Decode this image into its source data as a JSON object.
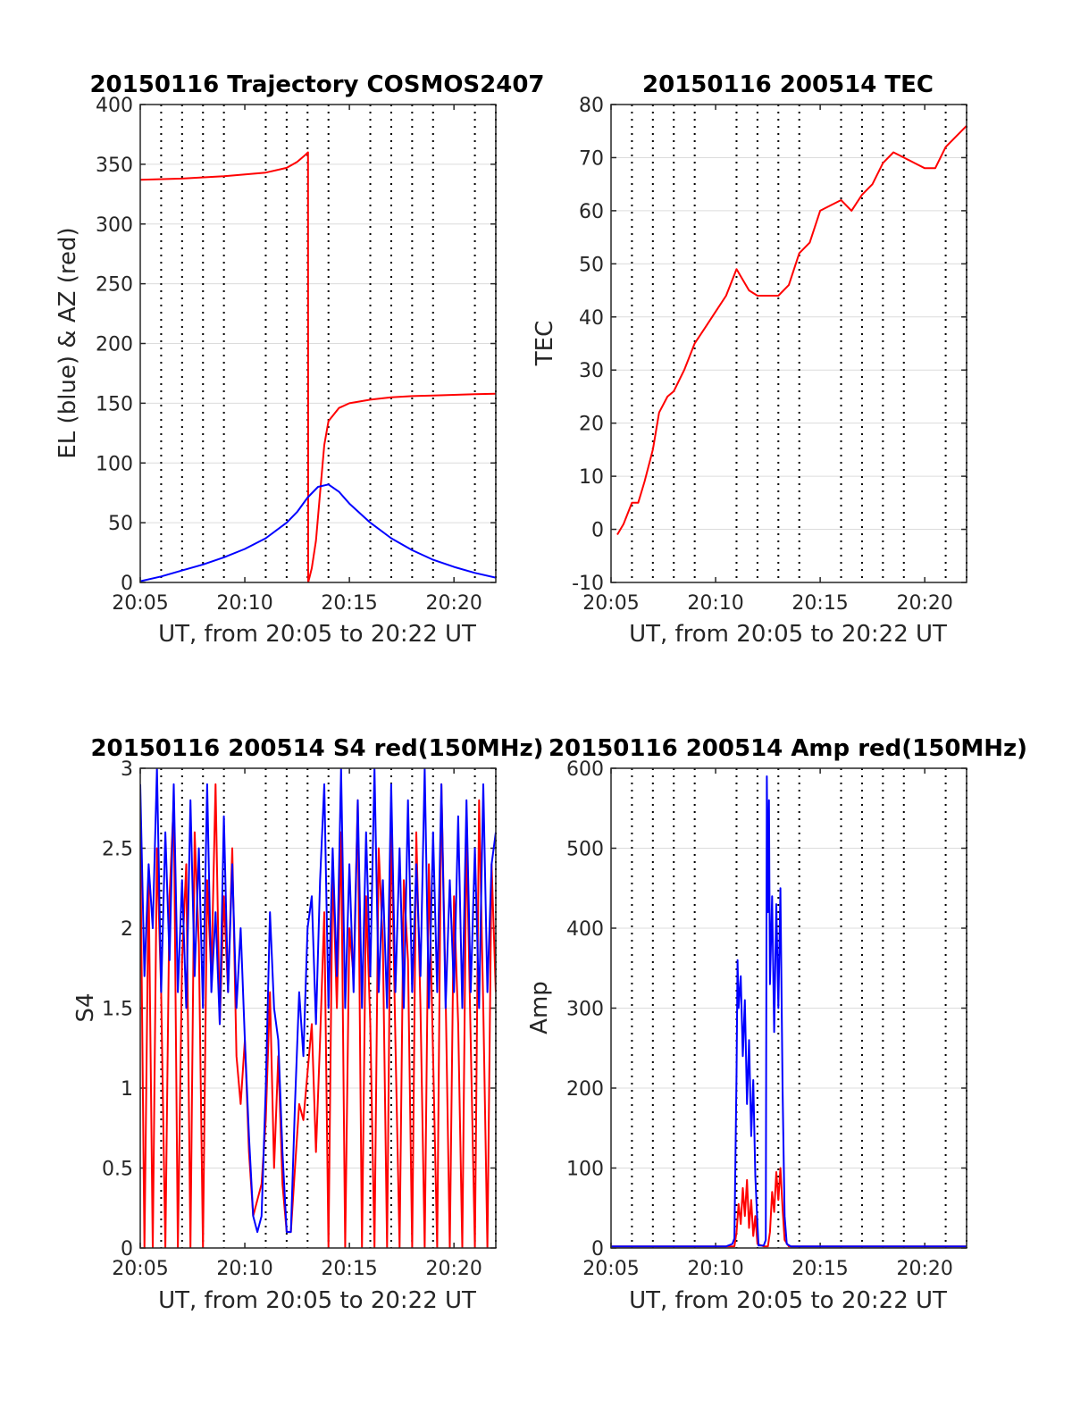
{
  "chart_data": [
    {
      "type": "line",
      "title": "20150116 Trajectory COSMOS2407",
      "xlabel": "UT, from 20:05 to 20:22 UT",
      "ylabel": "EL (blue) & AZ (red)",
      "xlim": [
        0,
        17
      ],
      "ylim": [
        0,
        400
      ],
      "x_ticks": [
        "20:05",
        "20:10",
        "20:15",
        "20:20"
      ],
      "y_ticks": [
        "0",
        "50",
        "100",
        "150",
        "200",
        "250",
        "300",
        "350",
        "400"
      ],
      "grid": true,
      "series": [
        {
          "color": "#ff0000",
          "x": [
            0,
            2,
            4,
            6,
            7,
            7.5,
            7.9,
            8.02,
            8.03,
            8.2,
            8.4,
            8.6,
            8.8,
            9.0,
            9.5,
            10,
            11,
            12,
            13,
            14,
            15,
            16,
            17
          ],
          "y": [
            337,
            338,
            340,
            343,
            347,
            352,
            358,
            360,
            0,
            12,
            35,
            75,
            115,
            135,
            146,
            150,
            153,
            155,
            156,
            156.5,
            157,
            157.5,
            158
          ]
        },
        {
          "color": "#0000ff",
          "x": [
            0,
            1,
            2,
            3,
            4,
            5,
            6,
            7,
            7.5,
            8,
            8.5,
            9,
            9.5,
            10,
            11,
            12,
            13,
            14,
            15,
            16,
            17
          ],
          "y": [
            1,
            5,
            10,
            15,
            21,
            28,
            37,
            50,
            59,
            71,
            80,
            82,
            76,
            66,
            50,
            37,
            27,
            19,
            13,
            8,
            4
          ]
        }
      ]
    },
    {
      "type": "line",
      "title": "20150116 200514 TEC",
      "xlabel": "UT, from 20:05 to 20:22 UT",
      "ylabel": "TEC",
      "xlim": [
        0,
        17
      ],
      "ylim": [
        -10,
        80
      ],
      "x_ticks": [
        "20:05",
        "20:10",
        "20:15",
        "20:20"
      ],
      "y_ticks": [
        "-10",
        "0",
        "10",
        "20",
        "30",
        "40",
        "50",
        "60",
        "70",
        "80"
      ],
      "grid": true,
      "series": [
        {
          "color": "#ff0000",
          "x": [
            0.3,
            0.6,
            1.0,
            1.3,
            1.6,
            2.0,
            2.3,
            2.7,
            3.0,
            3.5,
            4.0,
            4.5,
            5.0,
            5.5,
            6.0,
            6.3,
            6.6,
            7.0,
            7.5,
            8.0,
            8.5,
            9.0,
            9.5,
            10.0,
            10.5,
            11.0,
            11.5,
            12.0,
            12.5,
            13.0,
            13.5,
            14.0,
            14.5,
            15.0,
            15.5,
            16.0,
            16.5,
            17.0
          ],
          "y": [
            -1,
            1,
            5,
            5,
            9,
            15,
            22,
            25,
            26,
            30,
            35,
            38,
            41,
            44,
            49,
            47,
            45,
            44,
            44,
            44,
            46,
            52,
            54,
            60,
            61,
            62,
            60,
            63,
            65,
            69,
            71,
            70,
            69,
            68,
            68,
            72,
            74,
            76
          ]
        }
      ]
    },
    {
      "type": "line",
      "title": "20150116 200514 S4 red(150MHz)",
      "xlabel": "UT, from 20:05 to 20:22 UT",
      "ylabel": "S4",
      "xlim": [
        0,
        17
      ],
      "ylim": [
        0,
        3
      ],
      "x_ticks": [
        "20:05",
        "20:10",
        "20:15",
        "20:20"
      ],
      "y_ticks": [
        "0",
        "0.5",
        "1",
        "1.5",
        "2",
        "2.5",
        "3"
      ],
      "grid": true,
      "series": [
        {
          "color": "#ff0000",
          "x": [
            0,
            0.2,
            0.4,
            0.6,
            0.8,
            1.0,
            1.2,
            1.4,
            1.6,
            1.8,
            2.0,
            2.2,
            2.4,
            2.6,
            2.8,
            3.0,
            3.2,
            3.4,
            3.6,
            3.8,
            4.0,
            4.2,
            4.4,
            4.6,
            4.8,
            5.0,
            5.2,
            5.4,
            5.6,
            5.8,
            6.0,
            6.2,
            6.4,
            6.6,
            6.8,
            7.0,
            7.2,
            7.4,
            7.6,
            7.8,
            8.0,
            8.2,
            8.4,
            8.6,
            8.8,
            9.0,
            9.2,
            9.4,
            9.6,
            9.8,
            10.0,
            10.2,
            10.4,
            10.6,
            10.8,
            11.0,
            11.2,
            11.4,
            11.6,
            11.8,
            12.0,
            12.2,
            12.4,
            12.6,
            12.8,
            13.0,
            13.2,
            13.4,
            13.6,
            13.8,
            14.0,
            14.2,
            14.4,
            14.6,
            14.8,
            15.0,
            15.2,
            15.4,
            15.6,
            15.8,
            16.0,
            16.2,
            16.4,
            16.6,
            16.8,
            17.0
          ],
          "y": [
            2.6,
            0.0,
            2.3,
            0.0,
            2.5,
            1.6,
            0.0,
            2.2,
            2.8,
            0.0,
            1.8,
            2.4,
            0.0,
            2.6,
            1.9,
            0.0,
            2.3,
            1.7,
            2.9,
            1.4,
            2.2,
            1.6,
            2.5,
            1.2,
            0.9,
            1.3,
            0.6,
            0.2,
            0.3,
            0.4,
            0.8,
            1.6,
            0.5,
            1.2,
            0.4,
            0.1,
            0.1,
            0.5,
            0.9,
            0.8,
            1.1,
            1.4,
            0.6,
            1.3,
            2.1,
            0.0,
            2.4,
            1.5,
            2.6,
            0.0,
            2.0,
            1.7,
            2.8,
            0.0,
            2.2,
            1.4,
            0.0,
            2.5,
            1.9,
            0.0,
            2.7,
            1.3,
            0.0,
            2.3,
            1.8,
            0.0,
            2.6,
            1.5,
            0.0,
            2.4,
            1.2,
            0.0,
            2.9,
            1.6,
            0.0,
            2.2,
            1.4,
            0.0,
            2.6,
            1.3,
            0.0,
            2.8,
            1.5,
            0.0,
            2.4,
            1.6
          ]
        },
        {
          "color": "#0000ff",
          "x": [
            0,
            0.2,
            0.4,
            0.6,
            0.8,
            1.0,
            1.2,
            1.4,
            1.6,
            1.8,
            2.0,
            2.2,
            2.4,
            2.6,
            2.8,
            3.0,
            3.2,
            3.4,
            3.6,
            3.8,
            4.0,
            4.2,
            4.4,
            4.6,
            4.8,
            5.0,
            5.2,
            5.4,
            5.6,
            5.8,
            6.0,
            6.2,
            6.4,
            6.6,
            6.8,
            7.0,
            7.2,
            7.4,
            7.6,
            7.8,
            8.0,
            8.2,
            8.4,
            8.6,
            8.8,
            9.0,
            9.2,
            9.4,
            9.6,
            9.8,
            10.0,
            10.2,
            10.4,
            10.6,
            10.8,
            11.0,
            11.2,
            11.4,
            11.6,
            11.8,
            12.0,
            12.2,
            12.4,
            12.6,
            12.8,
            13.0,
            13.2,
            13.4,
            13.6,
            13.8,
            14.0,
            14.2,
            14.4,
            14.6,
            14.8,
            15.0,
            15.2,
            15.4,
            15.6,
            15.8,
            16.0,
            16.2,
            16.4,
            16.6,
            16.8,
            17.0
          ],
          "y": [
            2.9,
            1.7,
            2.4,
            2.0,
            3.0,
            1.6,
            2.6,
            1.8,
            2.9,
            1.6,
            2.3,
            1.5,
            2.8,
            1.7,
            2.5,
            1.5,
            2.9,
            1.6,
            2.1,
            1.4,
            2.7,
            1.6,
            2.4,
            1.5,
            2.0,
            1.3,
            0.7,
            0.2,
            0.1,
            0.2,
            1.0,
            2.1,
            1.5,
            1.3,
            0.6,
            0.1,
            0.1,
            0.9,
            1.6,
            1.2,
            2.0,
            2.2,
            1.4,
            2.3,
            2.9,
            1.5,
            2.5,
            1.7,
            3.0,
            1.5,
            2.4,
            1.6,
            2.8,
            1.5,
            2.6,
            1.7,
            3.0,
            1.6,
            2.3,
            1.5,
            2.9,
            1.6,
            2.5,
            1.5,
            2.8,
            1.6,
            2.4,
            1.7,
            3.0,
            1.5,
            2.6,
            1.6,
            2.9,
            1.5,
            2.3,
            1.6,
            2.7,
            1.5,
            2.8,
            1.6,
            2.5,
            1.5,
            2.9,
            1.6,
            2.4,
            2.6
          ]
        }
      ]
    },
    {
      "type": "line",
      "title": "20150116 200514 Amp red(150MHz)",
      "xlabel": "UT, from 20:05 to 20:22 UT",
      "ylabel": "Amp",
      "xlim": [
        0,
        17
      ],
      "ylim": [
        0,
        600
      ],
      "x_ticks": [
        "20:05",
        "20:10",
        "20:15",
        "20:20"
      ],
      "y_ticks": [
        "0",
        "100",
        "200",
        "300",
        "400",
        "500",
        "600"
      ],
      "grid": true,
      "series": [
        {
          "color": "#ff0000",
          "x": [
            0,
            5.5,
            5.9,
            6.0,
            6.1,
            6.2,
            6.3,
            6.4,
            6.5,
            6.6,
            6.7,
            6.8,
            6.9,
            7.0,
            7.3,
            7.5,
            7.6,
            7.7,
            7.8,
            7.9,
            8.0,
            8.1,
            8.2,
            8.3,
            8.5,
            17
          ],
          "y": [
            2,
            2,
            2,
            20,
            55,
            30,
            75,
            40,
            85,
            25,
            60,
            15,
            40,
            5,
            2,
            2,
            20,
            70,
            45,
            95,
            60,
            100,
            50,
            10,
            2,
            2
          ]
        },
        {
          "color": "#0000ff",
          "x": [
            0,
            5.5,
            5.8,
            5.9,
            6.0,
            6.05,
            6.1,
            6.2,
            6.3,
            6.4,
            6.5,
            6.6,
            6.7,
            6.8,
            6.9,
            7.0,
            7.05,
            7.3,
            7.4,
            7.45,
            7.5,
            7.55,
            7.6,
            7.7,
            7.8,
            7.9,
            8.0,
            8.1,
            8.2,
            8.3,
            8.4,
            8.6,
            17
          ],
          "y": [
            2,
            2,
            5,
            12,
            220,
            360,
            300,
            340,
            240,
            310,
            180,
            260,
            140,
            210,
            90,
            30,
            3,
            3,
            10,
            590,
            420,
            560,
            330,
            440,
            270,
            430,
            300,
            450,
            200,
            40,
            5,
            2,
            2
          ]
        }
      ]
    }
  ]
}
